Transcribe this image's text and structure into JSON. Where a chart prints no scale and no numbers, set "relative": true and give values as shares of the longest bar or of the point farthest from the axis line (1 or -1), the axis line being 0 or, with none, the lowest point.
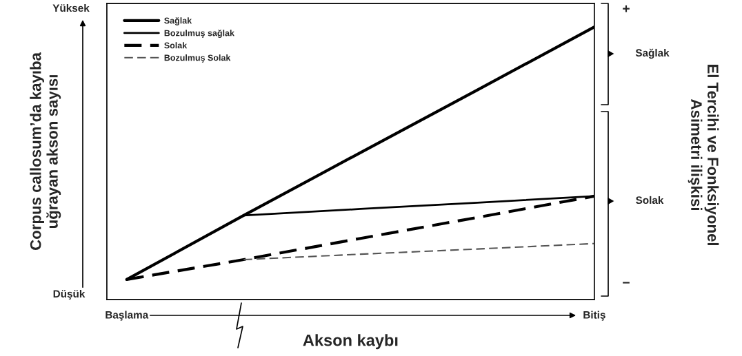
{
  "chart_data": {
    "type": "line",
    "relative": true,
    "xlabel": "Akson kaybı",
    "ylabel": "Corpus callosum’da kayıba\nuğrayan akson sayısı",
    "categories": [
      "Başlama",
      null,
      null,
      null,
      "Bitiş"
    ],
    "annotations": [
      "Yüksek",
      "Düşük",
      "+",
      "Sağlak",
      "Solak",
      "−",
      "El Tercihi ve Fonksiyonel\nAsimetri ilişkisi"
    ],
    "legend": "top left",
    "series": [
      {
        "name": "Sağlak",
        "color": "#000000",
        "line_style": "solid",
        "values": [
          0.073,
          0.308,
          0.539,
          0.769,
          1
        ]
      },
      {
        "name": "Bozulmuş sağlak",
        "color": "#000000",
        "line_style": "solid",
        "values": [
          null,
          0.308,
          0.332,
          0.355,
          0.379
        ]
      },
      {
        "name": "Solak",
        "color": "#000000",
        "line_style": "dashed",
        "values": [
          0.073,
          0.146,
          0.224,
          0.301,
          0.379
        ]
      },
      {
        "name": "Bozulmuş Solak",
        "color": "#555555",
        "line_style": "dashed",
        "values": [
          null,
          0.146,
          0.166,
          0.185,
          0.205
        ]
      }
    ]
  }
}
